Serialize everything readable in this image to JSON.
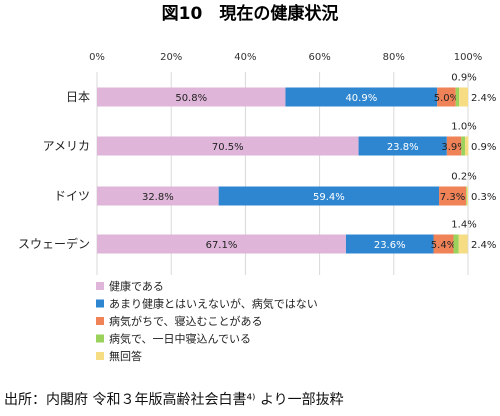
{
  "title": "図10　現在の健康状況",
  "source": "出所：内閣府 令和３年版高齢社会白書⁴⁾ より一部抜粋",
  "colors": {
    "healthy": "#dfb6d9",
    "not_great": "#2e86d0",
    "sometimes_bedridden": "#f08257",
    "bedridden_daily": "#9bd25c",
    "no_answer": "#f6dc82"
  },
  "chart_data": {
    "type": "bar",
    "orientation": "horizontal",
    "stacked": true,
    "xlim": [
      0,
      100
    ],
    "x_ticks": [
      "0%",
      "20%",
      "40%",
      "60%",
      "80%",
      "100%"
    ],
    "grid": true,
    "legend_position": "bottom-left",
    "categories": [
      "日本",
      "アメリカ",
      "ドイツ",
      "スウェーデン"
    ],
    "series": [
      {
        "name": "健康である",
        "key": "healthy",
        "values": [
          50.8,
          70.5,
          32.8,
          67.1
        ]
      },
      {
        "name": "あまり健康とはいえないが、病気ではない",
        "key": "not_great",
        "values": [
          40.9,
          23.8,
          59.4,
          23.6
        ]
      },
      {
        "name": "病気がちで、寝込むことがある",
        "key": "sometimes_bedridden",
        "values": [
          5.0,
          3.9,
          7.3,
          5.4
        ]
      },
      {
        "name": "病気で、一日中寝込んでいる",
        "key": "bedridden_daily",
        "values": [
          0.9,
          1.0,
          0.2,
          1.4
        ]
      },
      {
        "name": "無回答",
        "key": "no_answer",
        "values": [
          2.4,
          0.9,
          0.3,
          2.4
        ]
      }
    ],
    "labels": [
      [
        "50.8%",
        "40.9%",
        "5.0%",
        "0.9%",
        "2.4%"
      ],
      [
        "70.5%",
        "23.8%",
        "3.9%",
        "1.0%",
        "0.9%"
      ],
      [
        "32.8%",
        "59.4%",
        "7.3%",
        "0.2%",
        "0.3%"
      ],
      [
        "67.1%",
        "23.6%",
        "5.4%",
        "1.4%",
        "2.4%"
      ]
    ]
  }
}
